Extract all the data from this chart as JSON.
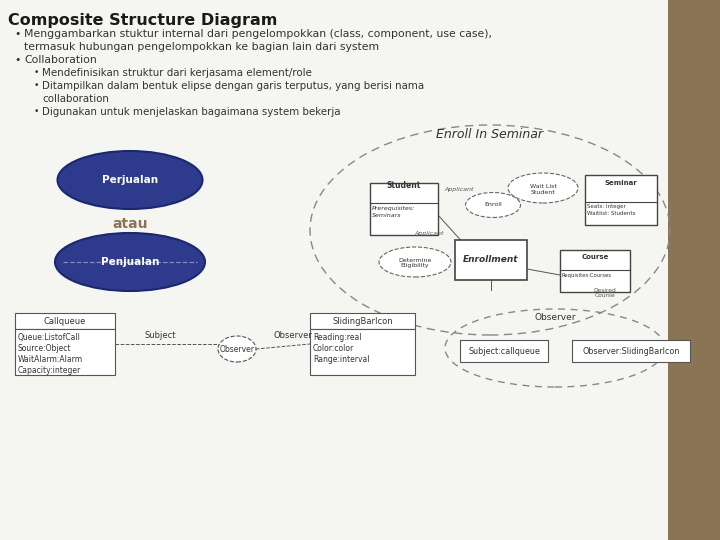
{
  "title": "Composite Structure Diagram",
  "bullet1": "Menggambarkan stuktur internal dari pengelompokkan (class, component, use case),",
  "bullet1b": "termasuk hubungan pengelompokkan ke bagian lain dari system",
  "bullet2": "Collaboration",
  "sub_bullet1": "Mendefinisikan struktur dari kerjasama element/role",
  "sub_bullet2": "Ditampilkan dalam bentuk elipse dengan garis terputus, yang berisi nama",
  "sub_bullet2b": "collaboration",
  "sub_bullet3": "Digunakan untuk menjelaskan bagaimana system bekerja",
  "atau_text": "atau",
  "ellipse1_label": "Perjualan",
  "ellipse2_label": "Penjualan",
  "bg_color": "#d6d0c4",
  "slide_bg": "#f5f5f2",
  "title_color": "#1a1a1a",
  "ellipse_fill": "#2e3a8c",
  "ellipse_text_color": "#ffffff",
  "atau_color": "#8B7355",
  "box1_title": "Callqueue",
  "box1_attrs": [
    "Queue:ListofCall",
    "Source:Object",
    "WaitAlarm:Alarm",
    "Capacity:integer"
  ],
  "box2_title": "SlidingBarIcon",
  "box2_attrs": [
    "Reading:real",
    "Color:color",
    "Range:interval"
  ],
  "observer_label": "Observer",
  "subject_label": "Subject",
  "observer_circle_label": "Observer",
  "collab_label": "Observer",
  "collab_box1": "Subject:callqueue",
  "collab_box2": "Observer:SlidingBarIcon",
  "enroll_title": "Enroll In Seminar"
}
